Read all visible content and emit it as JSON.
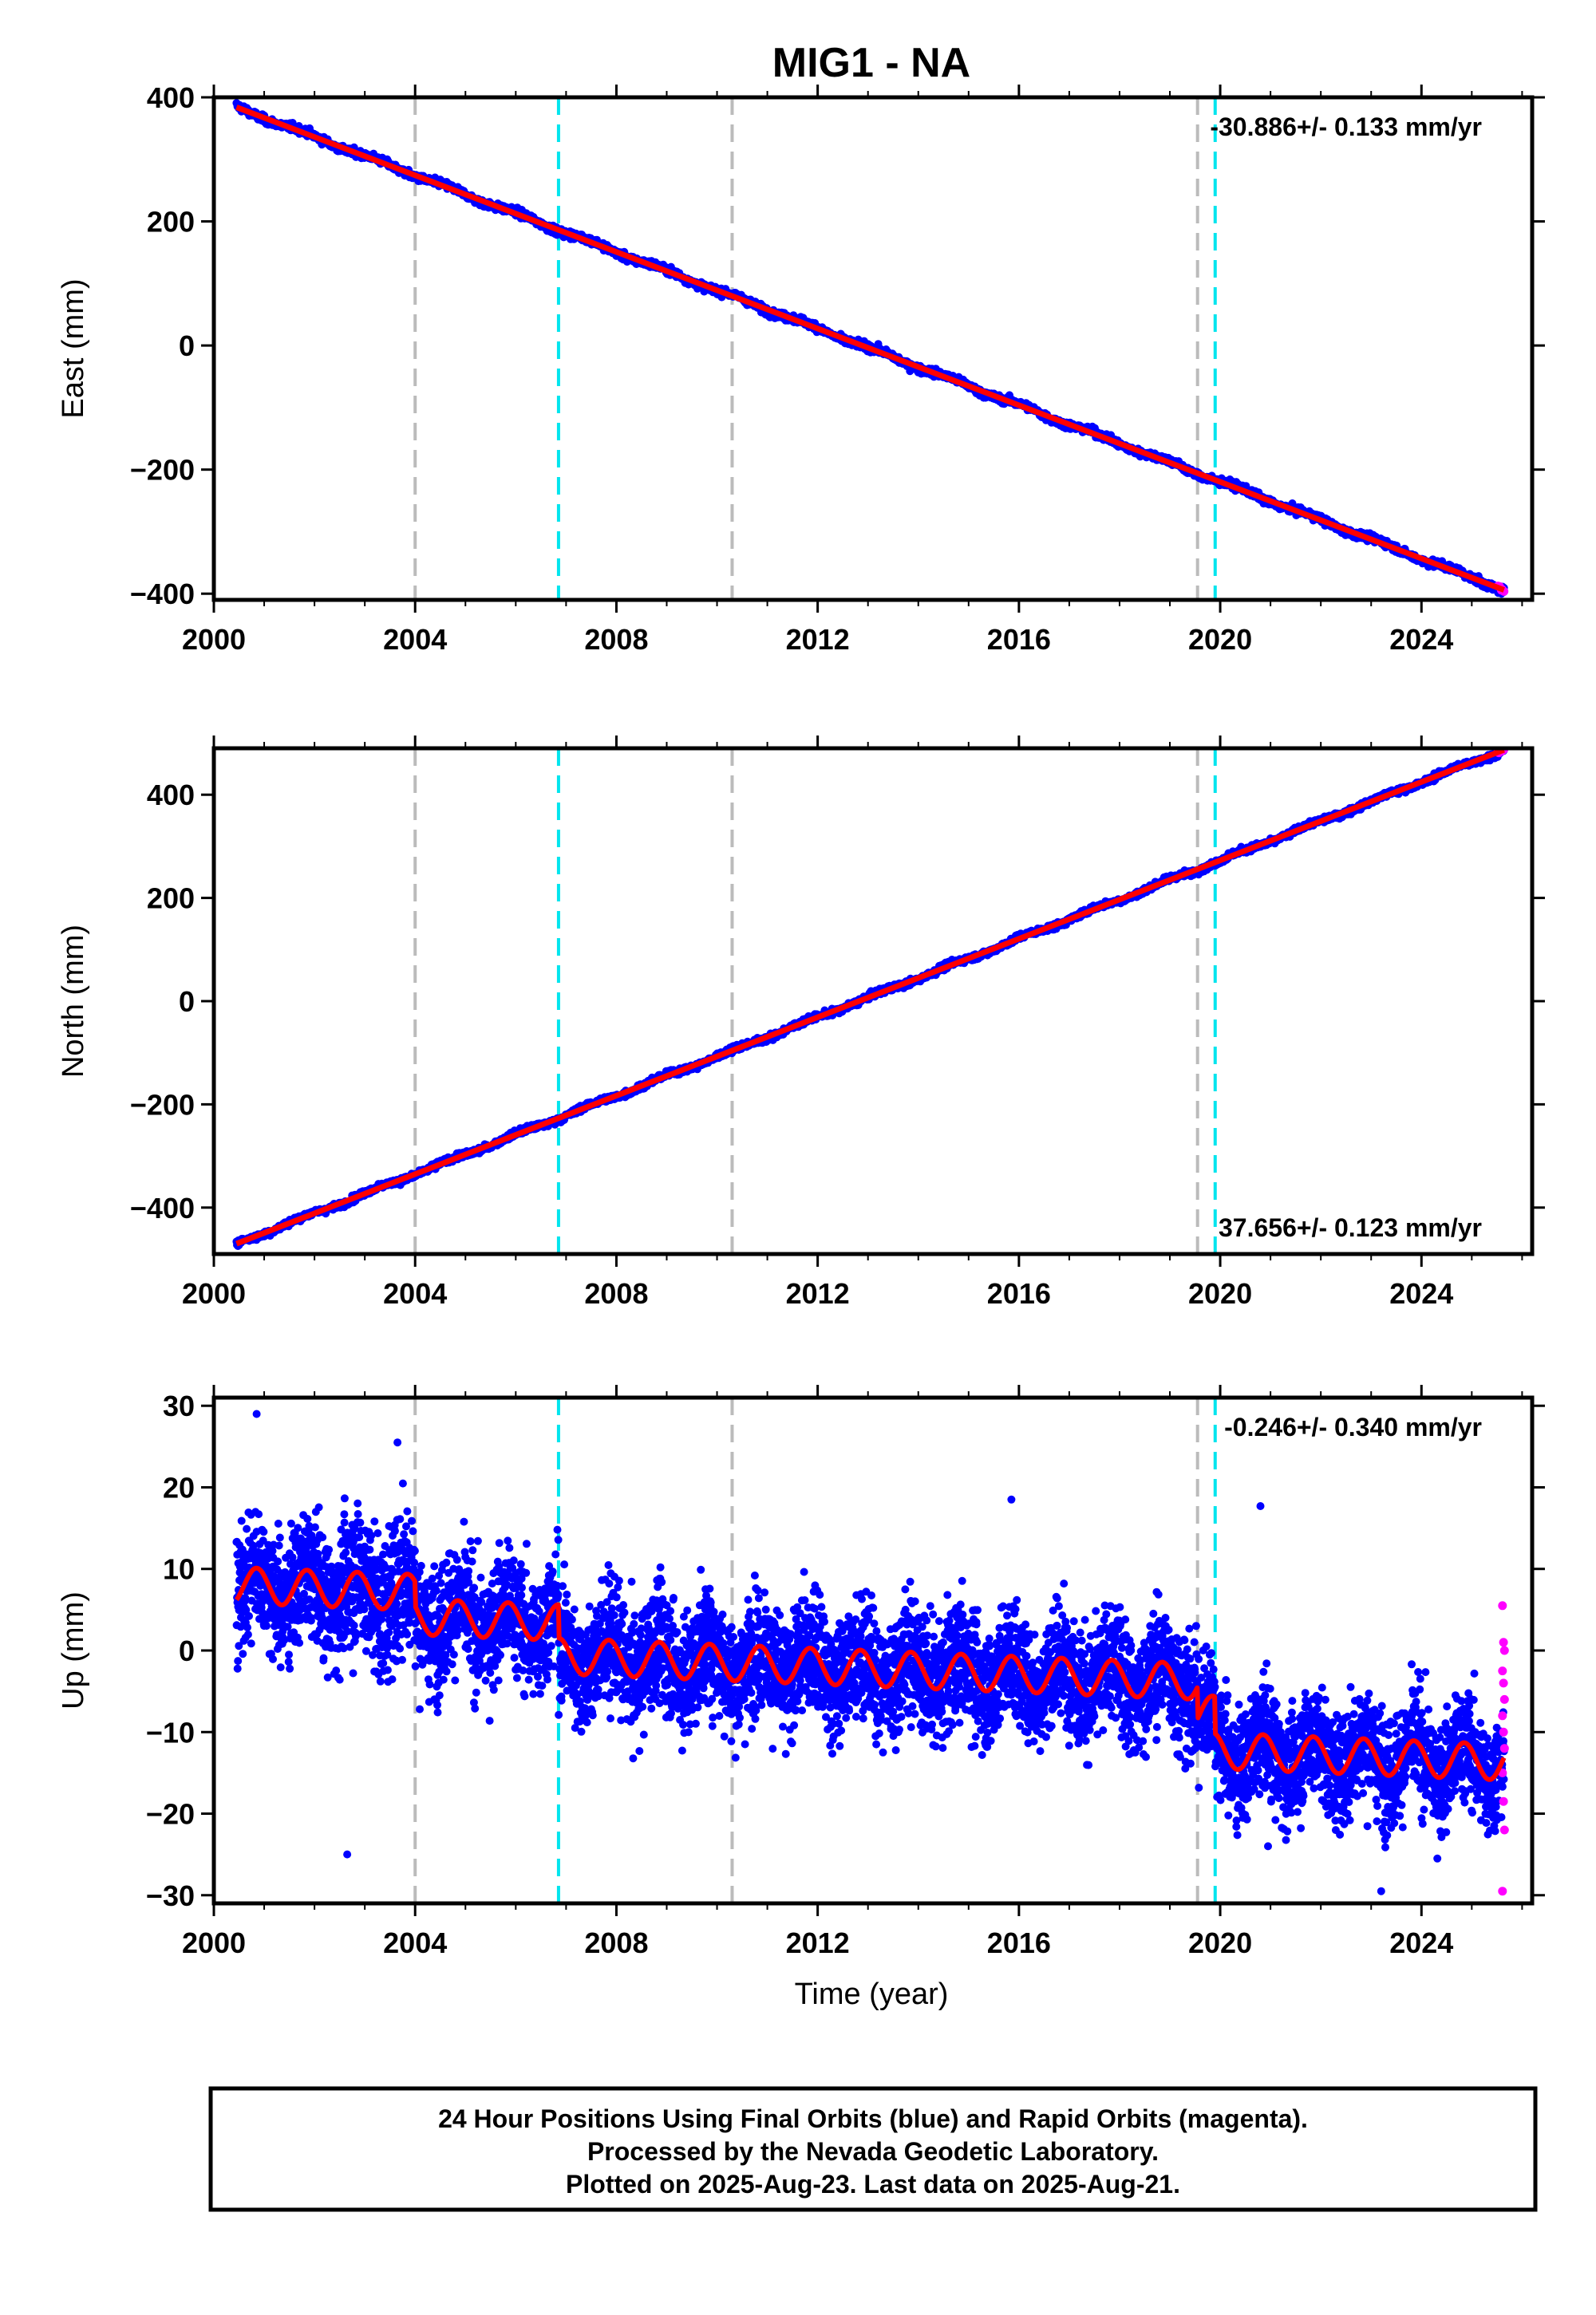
{
  "chart_data": {
    "title": "MIG1 - NA",
    "type": "scatter",
    "xlabel": "Time (year)",
    "xlim": [
      2000.0,
      2026.2
    ],
    "x_ticks": [
      2000,
      2004,
      2008,
      2012,
      2016,
      2020,
      2024
    ],
    "event_lines": {
      "gray": [
        2004.0,
        2010.3,
        2019.55
      ],
      "cyan": [
        2006.85,
        2019.9
      ]
    },
    "data_range": [
      2000.45,
      2025.64
    ],
    "colors": {
      "final_orbits": "#0000ff",
      "rapid_orbits": "#ff00ff",
      "model": "#ff0000",
      "gray_line": "#bbbbbb",
      "cyan_line": "#00e5ee"
    },
    "panels": [
      {
        "ylabel": "East (mm)",
        "ylim": [
          -410,
          400
        ],
        "y_ticks": [
          -400,
          -200,
          0,
          200,
          400
        ],
        "rate_label": "-30.886+/- 0.133 mm/yr",
        "rate_position": "top-right",
        "model": {
          "start": [
            2000.45,
            384
          ],
          "end": [
            2025.64,
            -394
          ]
        },
        "scatter_mm": 3
      },
      {
        "ylabel": "North (mm)",
        "ylim": [
          -490,
          490
        ],
        "y_ticks": [
          -400,
          -200,
          0,
          200,
          400
        ],
        "rate_label": "37.656+/- 0.123 mm/yr",
        "rate_position": "bottom-right",
        "model": {
          "start": [
            2000.45,
            -470
          ],
          "end": [
            2025.64,
            487
          ]
        },
        "scatter_mm": 3
      },
      {
        "ylabel": "Up (mm)",
        "ylim": [
          -31,
          31
        ],
        "y_ticks": [
          -30,
          -20,
          -10,
          0,
          10,
          20,
          30
        ],
        "rate_label": "-0.246+/- 0.340 mm/yr",
        "rate_position": "top-right",
        "model_segments": [
          {
            "from": 2000.45,
            "to": 2004.0,
            "offset": 8.0
          },
          {
            "from": 2004.0,
            "to": 2006.85,
            "offset": 5.0
          },
          {
            "from": 2006.85,
            "to": 2019.55,
            "offset": 0.9
          },
          {
            "from": 2019.55,
            "to": 2019.9,
            "offset": -3.0
          },
          {
            "from": 2019.9,
            "to": 2025.64,
            "offset": -7.5
          }
        ],
        "model_seasonal_amplitude_mm": 2.2,
        "model_trend_mm_per_yr": -0.246
      }
    ],
    "footer": [
      "24 Hour Positions Using Final Orbits (blue) and Rapid Orbits (magenta).",
      "Processed by the Nevada Geodetic Laboratory.",
      "Plotted on 2025-Aug-23. Last data on 2025-Aug-21."
    ]
  }
}
